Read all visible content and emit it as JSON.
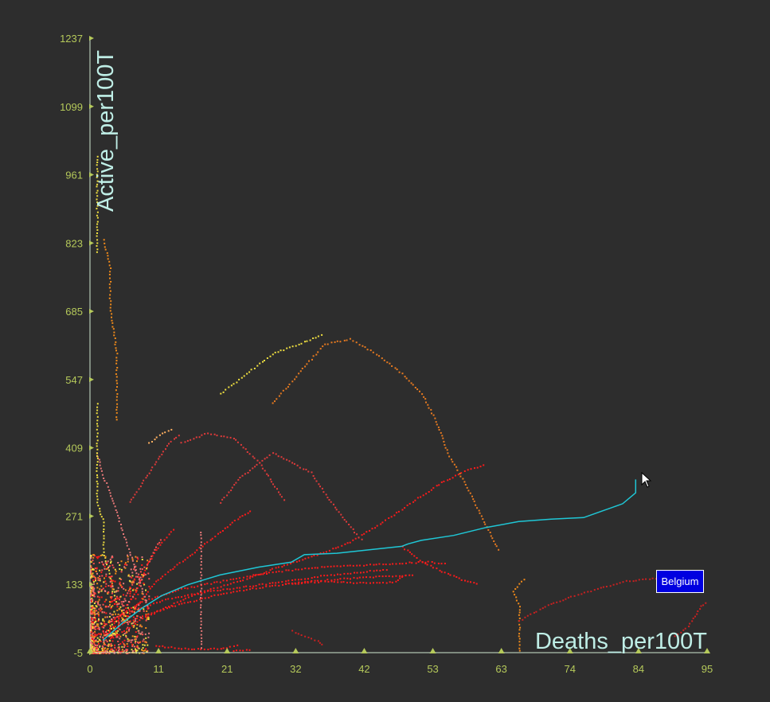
{
  "chart_data": {
    "type": "scatter",
    "xlabel": "Deaths_per100T",
    "ylabel": "Active_per100T",
    "xlim": [
      0,
      95
    ],
    "ylim": [
      -5,
      1237
    ],
    "x_ticks": [
      "0",
      "11",
      "21",
      "32",
      "42",
      "53",
      "63",
      "74",
      "84",
      "95"
    ],
    "y_ticks": [
      "1237",
      "1099",
      "961",
      "823",
      "685",
      "547",
      "409",
      "271",
      "133",
      "-5"
    ],
    "grid": false,
    "highlight": {
      "label": "Belgium",
      "color": "#1fc7d6",
      "points": [
        [
          2,
          20
        ],
        [
          5,
          55
        ],
        [
          8,
          85
        ],
        [
          11,
          110
        ],
        [
          15,
          132
        ],
        [
          20,
          152
        ],
        [
          26,
          168
        ],
        [
          31,
          178
        ],
        [
          33,
          193
        ],
        [
          38,
          196
        ],
        [
          43,
          203
        ],
        [
          48,
          210
        ],
        [
          49,
          215
        ],
        [
          51,
          222
        ],
        [
          56,
          232
        ],
        [
          61,
          248
        ],
        [
          66,
          260
        ],
        [
          71,
          265
        ],
        [
          76,
          268
        ],
        [
          79,
          282
        ],
        [
          82,
          296
        ],
        [
          84,
          318
        ],
        [
          84,
          345
        ]
      ]
    },
    "series": [
      {
        "color": "#ff1a1a",
        "points": [
          [
            22,
            0
          ],
          [
            25,
            3
          ]
        ]
      },
      {
        "color": "#ff1a1a",
        "points": [
          [
            2,
            50
          ],
          [
            6,
            80
          ],
          [
            12,
            105
          ],
          [
            18,
            120
          ],
          [
            24,
            130
          ],
          [
            30,
            140
          ],
          [
            36,
            152
          ],
          [
            42,
            160
          ],
          [
            46,
            165
          ]
        ]
      },
      {
        "color": "#ff1a1a",
        "points": [
          [
            2,
            40
          ],
          [
            8,
            70
          ],
          [
            14,
            95
          ],
          [
            20,
            115
          ],
          [
            26,
            128
          ],
          [
            32,
            138
          ],
          [
            38,
            145
          ],
          [
            44,
            150
          ],
          [
            50,
            153
          ]
        ]
      },
      {
        "color": "#ff1a1a",
        "points": [
          [
            3,
            60
          ],
          [
            8,
            100
          ],
          [
            14,
            125
          ],
          [
            20,
            140
          ],
          [
            26,
            155
          ],
          [
            30,
            162
          ],
          [
            34,
            168
          ],
          [
            40,
            172
          ],
          [
            46,
            176
          ],
          [
            52,
            180
          ],
          [
            55,
            175
          ]
        ]
      },
      {
        "color": "#ff1a1a",
        "points": [
          [
            4,
            30
          ],
          [
            8,
            65
          ],
          [
            12,
            90
          ],
          [
            16,
            115
          ],
          [
            20,
            130
          ],
          [
            24,
            145
          ],
          [
            28,
            165
          ],
          [
            34,
            190
          ],
          [
            40,
            220
          ],
          [
            45,
            260
          ],
          [
            50,
            305
          ],
          [
            54,
            340
          ],
          [
            58,
            365
          ],
          [
            61,
            378
          ]
        ]
      },
      {
        "color": "#ff1a1a",
        "points": [
          [
            10,
            10
          ],
          [
            14,
            5
          ],
          [
            18,
            3
          ],
          [
            21,
            6
          ],
          [
            23,
            12
          ]
        ]
      },
      {
        "color": "#ff1a1a",
        "points": [
          [
            1,
            10
          ],
          [
            4,
            60
          ],
          [
            7,
            120
          ],
          [
            9,
            180
          ],
          [
            11,
            220
          ],
          [
            13,
            250
          ]
        ]
      },
      {
        "color": "#ff1a1a",
        "points": [
          [
            3,
            25
          ],
          [
            7,
            90
          ],
          [
            10,
            140
          ],
          [
            13,
            170
          ],
          [
            16,
            200
          ],
          [
            20,
            240
          ],
          [
            23,
            270
          ],
          [
            25,
            285
          ]
        ]
      },
      {
        "color": "#ff1a1a",
        "points": [
          [
            48,
            210
          ],
          [
            51,
            180
          ],
          [
            55,
            155
          ],
          [
            58,
            140
          ],
          [
            60,
            135
          ]
        ]
      },
      {
        "color": "#ff1a1a",
        "points": [
          [
            30,
            135
          ],
          [
            36,
            140
          ],
          [
            40,
            138
          ],
          [
            44,
            137
          ],
          [
            47,
            140
          ],
          [
            48,
            150
          ],
          [
            49,
            155
          ]
        ]
      },
      {
        "color": "#e03a3a",
        "points": [
          [
            20,
            300
          ],
          [
            23,
            350
          ],
          [
            26,
            380
          ],
          [
            28,
            400
          ],
          [
            31,
            380
          ],
          [
            34,
            360
          ],
          [
            37,
            300
          ],
          [
            40,
            250
          ],
          [
            42,
            220
          ]
        ]
      },
      {
        "color": "#e03a3a",
        "points": [
          [
            14,
            420
          ],
          [
            18,
            440
          ],
          [
            22,
            430
          ],
          [
            26,
            380
          ],
          [
            30,
            300
          ]
        ]
      },
      {
        "color": "#e03a3a",
        "points": [
          [
            6,
            300
          ],
          [
            9,
            360
          ],
          [
            12,
            420
          ],
          [
            14,
            440
          ]
        ]
      },
      {
        "color": "#e87878",
        "points": [
          [
            1,
            400
          ],
          [
            2,
            350
          ],
          [
            3,
            320
          ],
          [
            4,
            280
          ],
          [
            6,
            200
          ],
          [
            8,
            120
          ],
          [
            9,
            80
          ]
        ]
      },
      {
        "color": "#e87878",
        "points": [
          [
            17,
            240
          ],
          [
            17,
            180
          ],
          [
            17,
            120
          ],
          [
            17,
            60
          ],
          [
            17,
            0
          ]
        ]
      },
      {
        "color": "#f08a1a",
        "points": [
          [
            2,
            830
          ],
          [
            3,
            780
          ],
          [
            3,
            700
          ],
          [
            4,
            600
          ],
          [
            4,
            520
          ],
          [
            4,
            460
          ]
        ]
      },
      {
        "color": "#f08a1a",
        "points": [
          [
            66,
            0
          ],
          [
            66,
            30
          ],
          [
            66,
            60
          ],
          [
            66,
            90
          ],
          [
            65,
            120
          ],
          [
            67,
            150
          ]
        ]
      },
      {
        "color": "#e87a20",
        "points": [
          [
            28,
            500
          ],
          [
            32,
            560
          ],
          [
            36,
            620
          ],
          [
            40,
            630
          ],
          [
            44,
            600
          ],
          [
            48,
            560
          ],
          [
            51,
            520
          ],
          [
            53,
            470
          ],
          [
            55,
            400
          ],
          [
            58,
            330
          ],
          [
            61,
            250
          ],
          [
            63,
            200
          ]
        ]
      },
      {
        "color": "#f0e040",
        "points": [
          [
            20,
            520
          ],
          [
            24,
            560
          ],
          [
            28,
            600
          ],
          [
            32,
            620
          ],
          [
            36,
            640
          ]
        ]
      },
      {
        "color": "#f0e040",
        "points": [
          [
            1,
            500
          ],
          [
            1,
            420
          ],
          [
            1,
            350
          ],
          [
            1,
            300
          ],
          [
            2,
            260
          ],
          [
            2,
            200
          ],
          [
            3,
            150
          ],
          [
            4,
            100
          ],
          [
            6,
            60
          ],
          [
            8,
            30
          ]
        ]
      },
      {
        "color": "#f0e040",
        "points": [
          [
            1,
            1000
          ],
          [
            1,
            900
          ],
          [
            1,
            800
          ]
        ]
      },
      {
        "color": "#ffb060",
        "points": [
          [
            9,
            420
          ],
          [
            11,
            440
          ],
          [
            13,
            450
          ]
        ]
      },
      {
        "color": "#cc2020",
        "points": [
          [
            66,
            60
          ],
          [
            70,
            90
          ],
          [
            74,
            110
          ],
          [
            78,
            125
          ],
          [
            82,
            140
          ],
          [
            86,
            145
          ],
          [
            90,
            150
          ],
          [
            94,
            160
          ]
        ]
      },
      {
        "color": "#cc2020",
        "points": [
          [
            90,
            30
          ],
          [
            92,
            50
          ],
          [
            93,
            70
          ],
          [
            94,
            90
          ],
          [
            95,
            100
          ]
        ]
      },
      {
        "color": "#cc2020",
        "points": [
          [
            31,
            40
          ],
          [
            33,
            30
          ],
          [
            35,
            20
          ],
          [
            36,
            10
          ]
        ]
      },
      {
        "color": "#ff5050",
        "points": [
          [
            5,
            100
          ],
          [
            7,
            150
          ],
          [
            9,
            180
          ],
          [
            10,
            210
          ],
          [
            11,
            230
          ]
        ]
      }
    ]
  }
}
